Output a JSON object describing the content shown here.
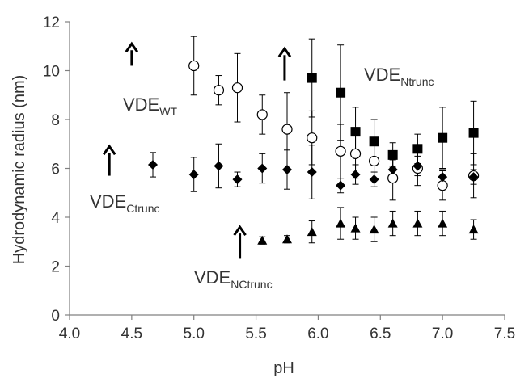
{
  "chart_data": {
    "type": "scatter",
    "title": "",
    "xlabel": "pH",
    "ylabel": "Hydrodynamic  radius (nm)",
    "xlim": [
      4.0,
      7.5
    ],
    "ylim": [
      0,
      12
    ],
    "x_ticks": [
      "4.0",
      "4.5",
      "5.0",
      "5.5",
      "6.0",
      "6.5",
      "7.0",
      "7.5"
    ],
    "y_ticks": [
      "0",
      "2",
      "4",
      "6",
      "8",
      "10",
      "12"
    ],
    "grid": false,
    "series": [
      {
        "marker": "open-circle",
        "color": "#000000",
        "points": [
          {
            "x": 5.0,
            "y": 10.2,
            "err": 1.2
          },
          {
            "x": 5.2,
            "y": 9.2,
            "err": 0.6
          },
          {
            "x": 5.35,
            "y": 9.3,
            "err": 1.4
          },
          {
            "x": 5.55,
            "y": 8.2,
            "err": 0.8
          },
          {
            "x": 5.75,
            "y": 7.6,
            "err": 1.5
          },
          {
            "x": 5.95,
            "y": 7.25,
            "err": 1.1
          },
          {
            "x": 6.18,
            "y": 6.7,
            "err": 1.1
          },
          {
            "x": 6.3,
            "y": 6.6,
            "err": 1.0
          },
          {
            "x": 6.45,
            "y": 6.3,
            "err": 0.8
          },
          {
            "x": 6.6,
            "y": 5.6,
            "err": 0.9
          },
          {
            "x": 6.8,
            "y": 6.0,
            "err": 0.7
          },
          {
            "x": 7.0,
            "y": 5.3,
            "err": 0.6
          },
          {
            "x": 7.25,
            "y": 5.7,
            "err": 0.9
          }
        ]
      },
      {
        "marker": "filled-square",
        "color": "#000000",
        "points": [
          {
            "x": 5.95,
            "y": 9.7,
            "err": 1.6
          },
          {
            "x": 6.18,
            "y": 9.1,
            "err": 1.95
          },
          {
            "x": 6.3,
            "y": 7.5,
            "err": 1.0
          },
          {
            "x": 6.45,
            "y": 7.1,
            "err": 0.9
          },
          {
            "x": 6.6,
            "y": 6.55,
            "err": 0.5
          },
          {
            "x": 6.8,
            "y": 6.8,
            "err": 0.6
          },
          {
            "x": 7.0,
            "y": 7.25,
            "err": 1.25
          },
          {
            "x": 7.25,
            "y": 7.45,
            "err": 1.3
          }
        ]
      },
      {
        "marker": "filled-diamond",
        "color": "#000000",
        "points": [
          {
            "x": 4.67,
            "y": 6.15,
            "err": 0.5
          },
          {
            "x": 5.0,
            "y": 5.75,
            "err": 0.7
          },
          {
            "x": 5.2,
            "y": 6.1,
            "err": 0.9
          },
          {
            "x": 5.35,
            "y": 5.55,
            "err": 0.3
          },
          {
            "x": 5.55,
            "y": 6.0,
            "err": 0.6
          },
          {
            "x": 5.75,
            "y": 5.95,
            "err": 0.8
          },
          {
            "x": 5.95,
            "y": 5.85,
            "err": 1.1
          },
          {
            "x": 6.18,
            "y": 5.3,
            "err": 0.3
          },
          {
            "x": 6.3,
            "y": 5.75,
            "err": 0.4
          },
          {
            "x": 6.45,
            "y": 5.55,
            "err": 0.3
          },
          {
            "x": 6.6,
            "y": 5.95,
            "err": 0.4
          },
          {
            "x": 6.8,
            "y": 6.1,
            "err": 0.4
          },
          {
            "x": 7.0,
            "y": 5.65,
            "err": 0.3
          },
          {
            "x": 7.25,
            "y": 5.65,
            "err": 0.3
          }
        ]
      },
      {
        "marker": "filled-triangle",
        "color": "#000000",
        "points": [
          {
            "x": 5.55,
            "y": 3.05,
            "err": 0.15
          },
          {
            "x": 5.75,
            "y": 3.1,
            "err": 0.15
          },
          {
            "x": 5.95,
            "y": 3.4,
            "err": 0.45
          },
          {
            "x": 6.18,
            "y": 3.75,
            "err": 0.65
          },
          {
            "x": 6.3,
            "y": 3.55,
            "err": 0.45
          },
          {
            "x": 6.45,
            "y": 3.5,
            "err": 0.5
          },
          {
            "x": 6.6,
            "y": 3.75,
            "err": 0.5
          },
          {
            "x": 6.8,
            "y": 3.75,
            "err": 0.5
          },
          {
            "x": 7.0,
            "y": 3.75,
            "err": 0.5
          },
          {
            "x": 7.25,
            "y": 3.5,
            "err": 0.4
          }
        ]
      }
    ],
    "annotations": [
      {
        "main": "VDE",
        "sub": "WT",
        "arrow_x": 4.5,
        "arrow_y": [
          11.1,
          10.2
        ]
      },
      {
        "main": "VDE",
        "sub": "Ntrunc"
      },
      {
        "main": "VDE",
        "sub": "Ctrunc",
        "arrow_x": 4.32,
        "arrow_y": [
          6.9,
          5.7
        ]
      },
      {
        "main": "VDE",
        "sub": "NCtrunc",
        "arrow_x": 5.37,
        "arrow_y": [
          3.6,
          2.3
        ]
      },
      {
        "arrow_x": 5.73,
        "arrow_y": [
          10.9,
          9.6
        ]
      }
    ]
  }
}
